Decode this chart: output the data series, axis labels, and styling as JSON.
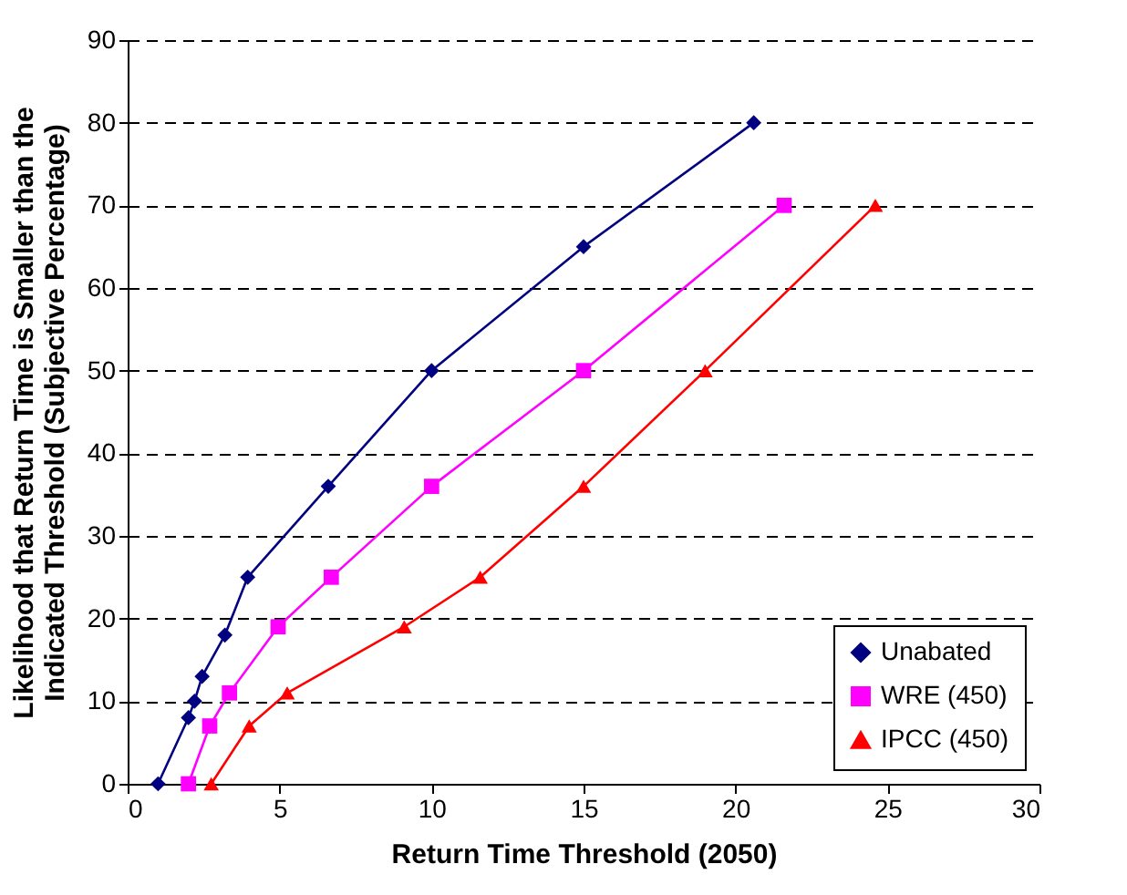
{
  "chart_data": {
    "type": "line",
    "xlabel": "Return Time Threshold (2050)",
    "ylabel": "Likelihood that Return Time is Smaller than the Indicated Threshold (Subjective Percentage)",
    "xlim": [
      0,
      30
    ],
    "xticks": [
      0,
      5,
      10,
      15,
      20,
      25,
      30
    ],
    "ylim": [
      0,
      90
    ],
    "yticks": [
      0,
      10,
      20,
      30,
      40,
      50,
      60,
      70,
      80,
      90
    ],
    "grid": "y",
    "legend": "bottom right",
    "series": [
      {
        "name": "Unabated",
        "color": "#000080",
        "marker": "diamond",
        "x": [
          1.0,
          2.0,
          2.2,
          2.45,
          3.2,
          3.95,
          6.6,
          10,
          15,
          20.6
        ],
        "values": [
          0,
          8,
          10,
          13,
          18,
          25,
          36,
          50,
          65,
          80
        ]
      },
      {
        "name": "WRE (450)",
        "color": "#ff00ff",
        "marker": "square",
        "x": [
          2.0,
          2.7,
          3.35,
          4.95,
          6.7,
          10,
          15,
          21.6
        ],
        "values": [
          0,
          7,
          11,
          19,
          25,
          36,
          50,
          70
        ]
      },
      {
        "name": "IPCC (450)",
        "color": "#ff0000",
        "marker": "triangle",
        "x": [
          2.75,
          4.0,
          5.25,
          9.1,
          11.6,
          15,
          19,
          24.6
        ],
        "values": [
          0,
          7,
          11,
          19,
          25,
          36,
          50,
          70
        ]
      }
    ]
  }
}
